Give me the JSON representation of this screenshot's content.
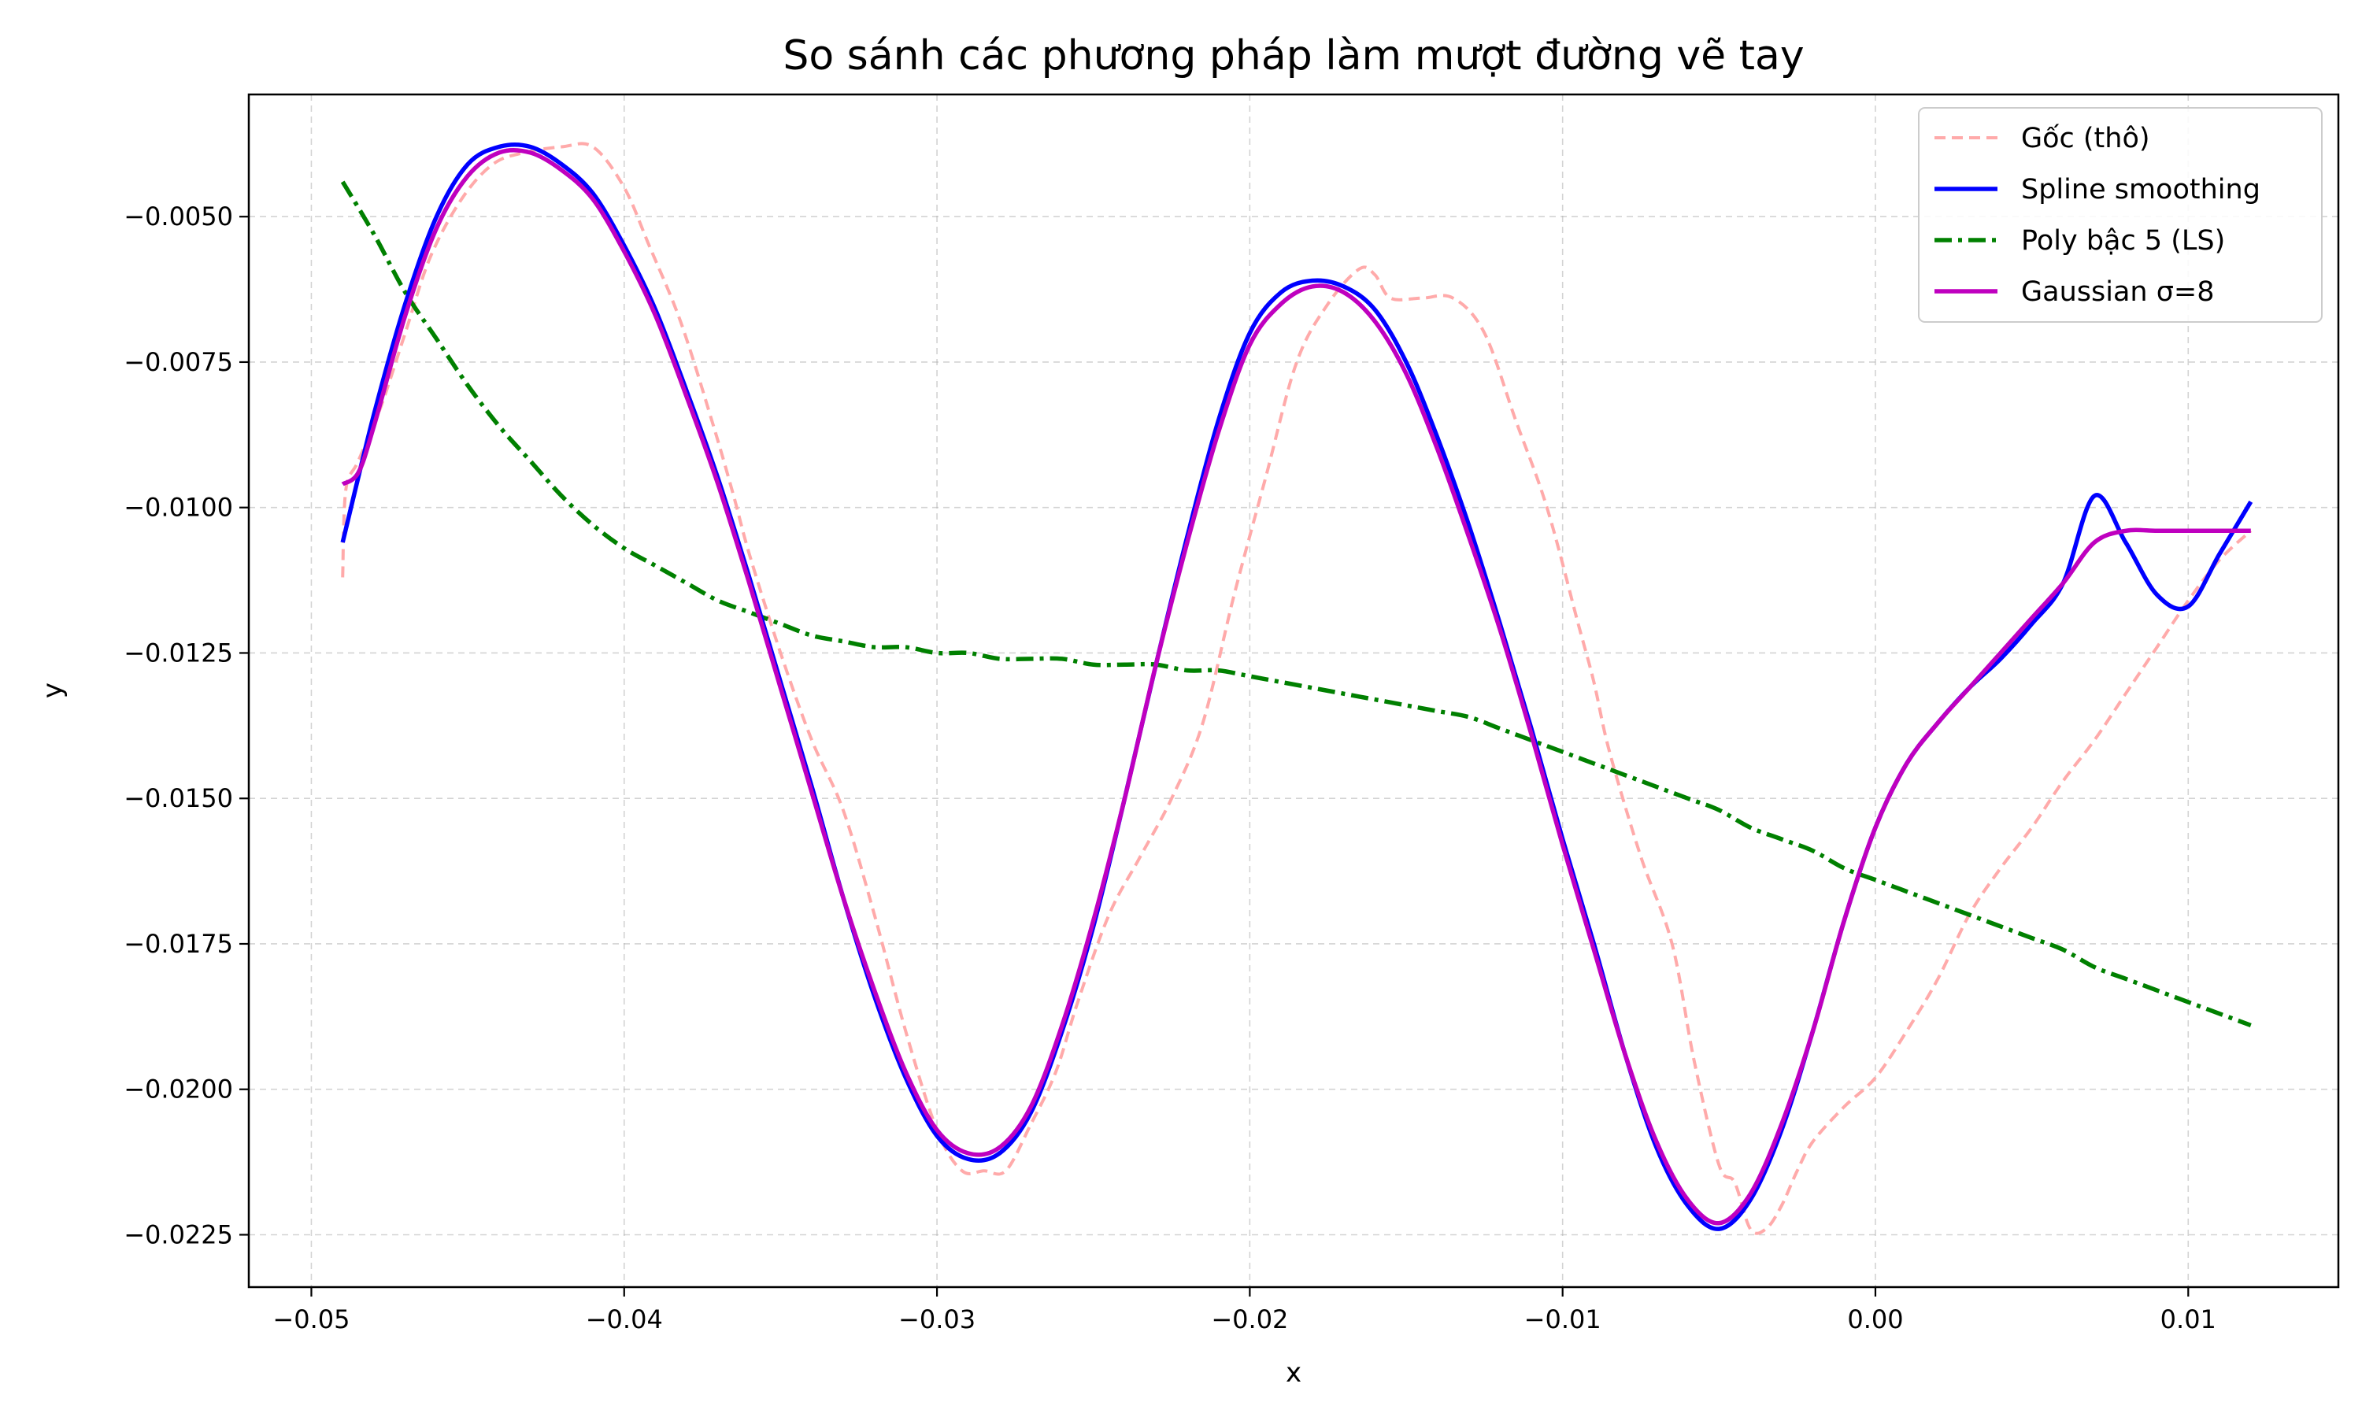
{
  "chart_data": {
    "type": "line",
    "title": "So sánh các phương pháp làm mượt đường vẽ tay",
    "xlabel": "x",
    "ylabel": "y",
    "xlim": [
      -0.052,
      0.0148
    ],
    "ylim": [
      -0.0234,
      -0.0029
    ],
    "xticks": [
      -0.05,
      -0.04,
      -0.03,
      -0.02,
      -0.01,
      0.0,
      0.01
    ],
    "xtick_labels": [
      "−0.05",
      "−0.04",
      "−0.03",
      "−0.02",
      "−0.01",
      "0.00",
      "0.01"
    ],
    "yticks": [
      -0.005,
      -0.0075,
      -0.01,
      -0.0125,
      -0.015,
      -0.0175,
      -0.02,
      -0.0225
    ],
    "ytick_labels": [
      "−0.0050",
      "−0.0075",
      "−0.0100",
      "−0.0125",
      "−0.0150",
      "−0.0175",
      "−0.0200",
      "−0.0225"
    ],
    "grid": true,
    "legend_position": "top-right",
    "series": [
      {
        "name": "Gốc (thô)",
        "color": "#ffaaaa",
        "style": "dashed",
        "x": [
          -0.049,
          -0.0489,
          -0.0485,
          -0.0478,
          -0.047,
          -0.0462,
          -0.0452,
          -0.0442,
          -0.0432,
          -0.042,
          -0.041,
          -0.04,
          -0.0392,
          -0.0382,
          -0.0372,
          -0.0365,
          -0.036,
          -0.035,
          -0.034,
          -0.033,
          -0.032,
          -0.031,
          -0.03,
          -0.0292,
          -0.0285,
          -0.0278,
          -0.027,
          -0.0262,
          -0.0255,
          -0.0245,
          -0.0235,
          -0.0225,
          -0.0215,
          -0.0205,
          -0.0195,
          -0.0185,
          -0.0175,
          -0.0165,
          -0.016,
          -0.0155,
          -0.0145,
          -0.0135,
          -0.0125,
          -0.0115,
          -0.0105,
          -0.0095,
          -0.009,
          -0.0085,
          -0.0075,
          -0.0065,
          -0.0058,
          -0.005,
          -0.0045,
          -0.004,
          -0.0035,
          -0.003,
          -0.0025,
          -0.002,
          -0.001,
          0.0,
          0.001,
          0.002,
          0.003,
          0.004,
          0.005,
          0.006,
          0.007,
          0.008,
          0.009,
          0.01,
          0.011,
          0.012
        ],
        "y": [
          -0.0112,
          -0.0097,
          -0.0092,
          -0.0083,
          -0.007,
          -0.0057,
          -0.0047,
          -0.0041,
          -0.0039,
          -0.0038,
          -0.0038,
          -0.0045,
          -0.0055,
          -0.0068,
          -0.0085,
          -0.0098,
          -0.0108,
          -0.0125,
          -0.014,
          -0.0152,
          -0.017,
          -0.019,
          -0.0207,
          -0.0214,
          -0.0214,
          -0.0214,
          -0.0206,
          -0.0197,
          -0.0185,
          -0.017,
          -0.016,
          -0.015,
          -0.0137,
          -0.0115,
          -0.0095,
          -0.0075,
          -0.0065,
          -0.0059,
          -0.006,
          -0.0064,
          -0.0064,
          -0.0064,
          -0.007,
          -0.0085,
          -0.01,
          -0.012,
          -0.013,
          -0.0142,
          -0.016,
          -0.0175,
          -0.0195,
          -0.0213,
          -0.0216,
          -0.0224,
          -0.0224,
          -0.022,
          -0.0214,
          -0.0209,
          -0.0203,
          -0.0198,
          -0.019,
          -0.0181,
          -0.017,
          -0.0162,
          -0.0155,
          -0.0147,
          -0.014,
          -0.0132,
          -0.0124,
          -0.0116,
          -0.0109,
          -0.0104
        ]
      },
      {
        "name": "Spline smoothing",
        "color": "#0000ff",
        "style": "solid",
        "x": [
          -0.049,
          -0.048,
          -0.047,
          -0.046,
          -0.045,
          -0.044,
          -0.043,
          -0.042,
          -0.041,
          -0.04,
          -0.039,
          -0.038,
          -0.037,
          -0.036,
          -0.035,
          -0.034,
          -0.033,
          -0.032,
          -0.031,
          -0.03,
          -0.029,
          -0.028,
          -0.027,
          -0.026,
          -0.025,
          -0.024,
          -0.023,
          -0.022,
          -0.021,
          -0.02,
          -0.019,
          -0.018,
          -0.017,
          -0.016,
          -0.015,
          -0.014,
          -0.013,
          -0.012,
          -0.011,
          -0.01,
          -0.009,
          -0.008,
          -0.007,
          -0.006,
          -0.005,
          -0.004,
          -0.003,
          -0.002,
          -0.001,
          0.0,
          0.001,
          0.002,
          0.003,
          0.004,
          0.005,
          0.006,
          0.007,
          0.008,
          0.009,
          0.01,
          0.011,
          0.012
        ],
        "y": [
          -0.0106,
          -0.0084,
          -0.0065,
          -0.005,
          -0.0041,
          -0.0038,
          -0.0038,
          -0.0041,
          -0.0046,
          -0.0055,
          -0.0066,
          -0.008,
          -0.0095,
          -0.0112,
          -0.013,
          -0.0148,
          -0.0167,
          -0.0184,
          -0.0198,
          -0.0208,
          -0.0212,
          -0.0211,
          -0.0204,
          -0.019,
          -0.0172,
          -0.015,
          -0.0127,
          -0.0105,
          -0.0085,
          -0.007,
          -0.0063,
          -0.0061,
          -0.0062,
          -0.0066,
          -0.0075,
          -0.0088,
          -0.0103,
          -0.012,
          -0.0138,
          -0.0157,
          -0.0175,
          -0.0194,
          -0.021,
          -0.022,
          -0.0224,
          -0.0219,
          -0.0207,
          -0.019,
          -0.0171,
          -0.0155,
          -0.0144,
          -0.0137,
          -0.0131,
          -0.0126,
          -0.012,
          -0.0113,
          -0.0098,
          -0.0106,
          -0.0115,
          -0.0117,
          -0.0108,
          -0.0099
        ]
      },
      {
        "name": "Poly bậc 5 (LS)",
        "color": "#008000",
        "style": "dashdot",
        "x": [
          -0.049,
          -0.048,
          -0.047,
          -0.046,
          -0.045,
          -0.044,
          -0.043,
          -0.042,
          -0.041,
          -0.04,
          -0.039,
          -0.038,
          -0.037,
          -0.036,
          -0.035,
          -0.034,
          -0.033,
          -0.032,
          -0.031,
          -0.03,
          -0.029,
          -0.028,
          -0.027,
          -0.026,
          -0.025,
          -0.024,
          -0.023,
          -0.022,
          -0.021,
          -0.02,
          -0.019,
          -0.018,
          -0.017,
          -0.016,
          -0.015,
          -0.014,
          -0.013,
          -0.012,
          -0.011,
          -0.01,
          -0.009,
          -0.008,
          -0.007,
          -0.006,
          -0.005,
          -0.004,
          -0.003,
          -0.002,
          -0.001,
          0.0,
          0.001,
          0.002,
          0.003,
          0.004,
          0.005,
          0.006,
          0.007,
          0.008,
          0.009,
          0.01,
          0.011,
          0.012
        ],
        "y": [
          -0.0044,
          -0.0053,
          -0.0063,
          -0.0071,
          -0.0079,
          -0.0086,
          -0.0092,
          -0.0098,
          -0.0103,
          -0.0107,
          -0.011,
          -0.0113,
          -0.0116,
          -0.0118,
          -0.012,
          -0.0122,
          -0.0123,
          -0.0124,
          -0.0124,
          -0.0125,
          -0.0125,
          -0.0126,
          -0.0126,
          -0.0126,
          -0.0127,
          -0.0127,
          -0.0127,
          -0.0128,
          -0.0128,
          -0.0129,
          -0.013,
          -0.0131,
          -0.0132,
          -0.0133,
          -0.0134,
          -0.0135,
          -0.0136,
          -0.0138,
          -0.014,
          -0.0142,
          -0.0144,
          -0.0146,
          -0.0148,
          -0.015,
          -0.0152,
          -0.0155,
          -0.0157,
          -0.0159,
          -0.0162,
          -0.0164,
          -0.0166,
          -0.0168,
          -0.017,
          -0.0172,
          -0.0174,
          -0.0176,
          -0.0179,
          -0.0181,
          -0.0183,
          -0.0185,
          -0.0187,
          -0.0189
        ]
      },
      {
        "name": "Gaussian σ=8",
        "color": "#bf00bf",
        "style": "solid",
        "x": [
          -0.049,
          -0.0485,
          -0.048,
          -0.047,
          -0.046,
          -0.045,
          -0.044,
          -0.043,
          -0.042,
          -0.041,
          -0.04,
          -0.039,
          -0.038,
          -0.037,
          -0.036,
          -0.035,
          -0.034,
          -0.033,
          -0.032,
          -0.031,
          -0.03,
          -0.029,
          -0.028,
          -0.027,
          -0.026,
          -0.025,
          -0.024,
          -0.023,
          -0.022,
          -0.021,
          -0.02,
          -0.019,
          -0.018,
          -0.017,
          -0.016,
          -0.015,
          -0.014,
          -0.013,
          -0.012,
          -0.011,
          -0.01,
          -0.009,
          -0.008,
          -0.007,
          -0.006,
          -0.005,
          -0.004,
          -0.003,
          -0.002,
          -0.001,
          0.0,
          0.001,
          0.002,
          0.003,
          0.004,
          0.005,
          0.006,
          0.007,
          0.008,
          0.009,
          0.01,
          0.011,
          0.012
        ],
        "y": [
          -0.0096,
          -0.0094,
          -0.0086,
          -0.0067,
          -0.0052,
          -0.0043,
          -0.0039,
          -0.0039,
          -0.0042,
          -0.0047,
          -0.0056,
          -0.0067,
          -0.0081,
          -0.0096,
          -0.0113,
          -0.0131,
          -0.0149,
          -0.0167,
          -0.0183,
          -0.0197,
          -0.0207,
          -0.0211,
          -0.021,
          -0.0203,
          -0.0189,
          -0.0171,
          -0.015,
          -0.0127,
          -0.0106,
          -0.0087,
          -0.0072,
          -0.0065,
          -0.0062,
          -0.0063,
          -0.0068,
          -0.0077,
          -0.009,
          -0.0105,
          -0.0121,
          -0.0139,
          -0.0158,
          -0.0176,
          -0.0194,
          -0.0209,
          -0.0219,
          -0.0223,
          -0.0218,
          -0.0206,
          -0.019,
          -0.0171,
          -0.0155,
          -0.0144,
          -0.0137,
          -0.0131,
          -0.0125,
          -0.0119,
          -0.0113,
          -0.0106,
          -0.0104,
          -0.0104,
          -0.0104,
          -0.0104,
          -0.0104
        ]
      }
    ]
  }
}
